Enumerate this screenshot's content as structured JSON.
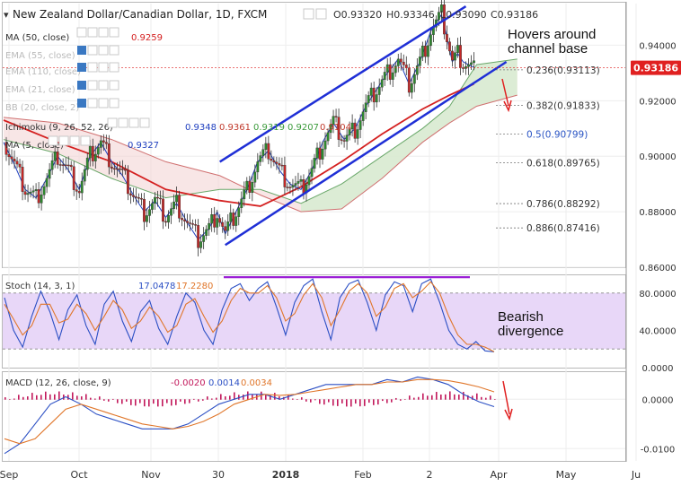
{
  "header": {
    "symbol": "New Zealand Dollar/Canadian Dollar, 1D, FXCM",
    "ohlc_o": "O0.93320",
    "ohlc_h": "H0.93346",
    "ohlc_l": "L0.93090",
    "ohlc_c": "C0.93186"
  },
  "indicators_main": [
    {
      "label": "MA (50, close)",
      "values": [
        "0.9259"
      ],
      "colors": [
        "#d42020"
      ]
    },
    {
      "label": "EMA (55, close)",
      "values": [],
      "colors": []
    },
    {
      "label": "EMA (110, close)",
      "values": [],
      "colors": []
    },
    {
      "label": "EMA (21, close)",
      "values": [],
      "colors": []
    },
    {
      "label": "BB (20, close, 2)",
      "values": [],
      "colors": []
    },
    {
      "label": "Ichimoku (9, 26, 52, 26)",
      "values": [
        "0.9348",
        "0.9361",
        "0.9319",
        "0.9207",
        "0.9104"
      ],
      "colors": [
        "#1f3fbf",
        "#c0392b",
        "#3a9a3a",
        "#3a9a3a",
        "#c0392b"
      ]
    },
    {
      "label": "MA (5, close)",
      "values": [
        "0.9327"
      ],
      "colors": [
        "#1f3fbf"
      ]
    }
  ],
  "price_badge": {
    "value": "0.93186",
    "color": "#e02020"
  },
  "annotations": {
    "channel_note_1": "Hovers around",
    "channel_note_2": "channel base",
    "stoch_note_1": "Bearish",
    "stoch_note_2": "divergence"
  },
  "fib_levels": [
    {
      "label": "0.236(0.93113)",
      "price": 0.93113,
      "highlight": false
    },
    {
      "label": "0.382(0.91833)",
      "price": 0.91833,
      "highlight": false
    },
    {
      "label": "0.5(0.90799)",
      "price": 0.90799,
      "highlight": true
    },
    {
      "label": "0.618(0.89765)",
      "price": 0.89765,
      "highlight": false
    },
    {
      "label": "0.786(0.88292)",
      "price": 0.88292,
      "highlight": false
    },
    {
      "label": "0.886(0.87416)",
      "price": 0.87416,
      "highlight": false
    }
  ],
  "stoch_header": {
    "label": "Stoch (14, 3, 1)",
    "k": "17.0478",
    "d": "17.2280",
    "k_color": "#2b4fc4",
    "d_color": "#e0762a"
  },
  "macd_header": {
    "label": "MACD (12, 26, close, 9)",
    "v1": "-0.0020",
    "v2": "0.0014",
    "v3": "0.0034",
    "c1": "#c2185b",
    "c2": "#2b4fc4",
    "c3": "#e0762a"
  },
  "chart_data": [
    {
      "type": "candlestick",
      "title": "New Zealand Dollar/Canadian Dollar, 1D, FXCM",
      "ylim": [
        0.86,
        0.955
      ],
      "yticks": [
        "0.94000",
        "0.92000",
        "0.90000",
        "0.88000",
        "0.86000"
      ],
      "x_tick_labels": [
        "Sep",
        "Oct",
        "Nov",
        "30",
        "2018",
        "Feb",
        "2",
        "Apr",
        "May",
        "Ju"
      ],
      "x_bold_labels": [
        "2018"
      ],
      "close_path": [
        [
          0,
          0.905
        ],
        [
          4,
          0.897
        ],
        [
          8,
          0.888
        ],
        [
          12,
          0.885
        ],
        [
          16,
          0.892
        ],
        [
          20,
          0.9
        ],
        [
          24,
          0.895
        ],
        [
          28,
          0.888
        ],
        [
          32,
          0.9
        ],
        [
          36,
          0.905
        ],
        [
          40,
          0.898
        ],
        [
          44,
          0.893
        ],
        [
          48,
          0.886
        ],
        [
          52,
          0.88
        ],
        [
          56,
          0.884
        ],
        [
          60,
          0.878
        ],
        [
          64,
          0.883
        ],
        [
          68,
          0.876
        ],
        [
          72,
          0.87
        ],
        [
          76,
          0.874
        ],
        [
          79,
          0.88
        ],
        [
          82,
          0.872
        ],
        [
          86,
          0.88
        ],
        [
          90,
          0.888
        ],
        [
          94,
          0.898
        ],
        [
          98,
          0.902
        ],
        [
          102,
          0.895
        ],
        [
          106,
          0.89
        ],
        [
          110,
          0.888
        ],
        [
          114,
          0.895
        ],
        [
          118,
          0.905
        ],
        [
          122,
          0.912
        ],
        [
          126,
          0.906
        ],
        [
          130,
          0.91
        ],
        [
          134,
          0.918
        ],
        [
          138,
          0.924
        ],
        [
          142,
          0.93
        ],
        [
          146,
          0.935
        ],
        [
          150,
          0.926
        ],
        [
          154,
          0.934
        ],
        [
          158,
          0.945
        ],
        [
          162,
          0.951
        ],
        [
          164,
          0.943
        ],
        [
          166,
          0.934
        ],
        [
          168,
          0.937
        ],
        [
          170,
          0.934
        ],
        [
          172,
          0.933
        ],
        [
          174,
          0.932
        ]
      ],
      "ma50_path": [
        [
          0,
          0.913
        ],
        [
          20,
          0.905
        ],
        [
          40,
          0.898
        ],
        [
          60,
          0.888
        ],
        [
          80,
          0.884
        ],
        [
          95,
          0.882
        ],
        [
          110,
          0.889
        ],
        [
          125,
          0.898
        ],
        [
          140,
          0.908
        ],
        [
          155,
          0.917
        ],
        [
          165,
          0.922
        ],
        [
          174,
          0.926
        ]
      ],
      "cloud_span_a": [
        [
          0,
          0.906
        ],
        [
          20,
          0.901
        ],
        [
          40,
          0.892
        ],
        [
          60,
          0.885
        ],
        [
          80,
          0.888
        ],
        [
          95,
          0.888
        ],
        [
          110,
          0.883
        ],
        [
          125,
          0.89
        ],
        [
          140,
          0.9
        ],
        [
          155,
          0.91
        ],
        [
          165,
          0.918
        ],
        [
          175,
          0.933
        ],
        [
          190,
          0.935
        ]
      ],
      "cloud_span_b": [
        [
          0,
          0.914
        ],
        [
          20,
          0.912
        ],
        [
          40,
          0.906
        ],
        [
          60,
          0.898
        ],
        [
          80,
          0.893
        ],
        [
          95,
          0.886
        ],
        [
          110,
          0.88
        ],
        [
          125,
          0.881
        ],
        [
          140,
          0.892
        ],
        [
          155,
          0.905
        ],
        [
          165,
          0.912
        ],
        [
          175,
          0.918
        ],
        [
          190,
          0.922
        ]
      ],
      "channel_upper": [
        [
          80,
          0.898
        ],
        [
          171,
          0.954
        ]
      ],
      "channel_lower": [
        [
          82,
          0.868
        ],
        [
          186,
          0.934
        ]
      ],
      "current_price": 0.93186
    },
    {
      "type": "line",
      "title": "Stoch (14, 3, 1)",
      "ylim": [
        0,
        100
      ],
      "yticks": [
        "80.0000",
        "40.0000",
        "0.0000"
      ],
      "band": [
        20,
        80
      ],
      "series": [
        {
          "name": "%K",
          "color": "#2b4fc4",
          "values": [
            75,
            40,
            22,
            55,
            82,
            60,
            30,
            62,
            78,
            45,
            25,
            68,
            82,
            50,
            28,
            60,
            72,
            42,
            25,
            55,
            80,
            70,
            40,
            25,
            62,
            85,
            90,
            72,
            85,
            92,
            65,
            35,
            70,
            88,
            95,
            60,
            30,
            75,
            90,
            94,
            70,
            40,
            78,
            92,
            88,
            60,
            90,
            95,
            70,
            40,
            25,
            20,
            28,
            18,
            17
          ]
        },
        {
          "name": "%D",
          "color": "#e0762a",
          "values": [
            68,
            52,
            35,
            45,
            68,
            68,
            48,
            52,
            68,
            58,
            40,
            55,
            72,
            62,
            42,
            50,
            65,
            55,
            38,
            45,
            68,
            74,
            55,
            38,
            50,
            72,
            85,
            80,
            80,
            88,
            75,
            50,
            58,
            78,
            90,
            75,
            45,
            62,
            82,
            90,
            80,
            55,
            65,
            85,
            90,
            75,
            82,
            92,
            80,
            55,
            35,
            25,
            25,
            22,
            17
          ]
        }
      ]
    },
    {
      "type": "line",
      "title": "MACD (12, 26, close, 9)",
      "ylim": [
        -0.0125,
        0.0055
      ],
      "yticks": [
        "0.0000",
        "-0.0100"
      ],
      "series": [
        {
          "name": "MACD",
          "color": "#2b4fc4",
          "values": [
            -0.011,
            -0.009,
            -0.005,
            -0.001,
            0.0005,
            -0.001,
            -0.003,
            -0.004,
            -0.005,
            -0.006,
            -0.006,
            -0.006,
            -0.005,
            -0.003,
            -0.001,
            0.0,
            0.001,
            0.001,
            0.0,
            0.001,
            0.002,
            0.003,
            0.003,
            0.003,
            0.003,
            0.004,
            0.0035,
            0.0045,
            0.004,
            0.003,
            0.001,
            -0.0005,
            -0.0015
          ]
        },
        {
          "name": "Signal",
          "color": "#e0762a",
          "values": [
            -0.008,
            -0.009,
            -0.008,
            -0.005,
            -0.002,
            -0.001,
            -0.002,
            -0.003,
            -0.004,
            -0.005,
            -0.0055,
            -0.006,
            -0.0055,
            -0.0045,
            -0.003,
            -0.001,
            0.0,
            0.001,
            0.0008,
            0.001,
            0.0015,
            0.002,
            0.0025,
            0.003,
            0.003,
            0.0035,
            0.0035,
            0.004,
            0.004,
            0.0038,
            0.0032,
            0.0025,
            0.0015
          ]
        }
      ]
    }
  ]
}
